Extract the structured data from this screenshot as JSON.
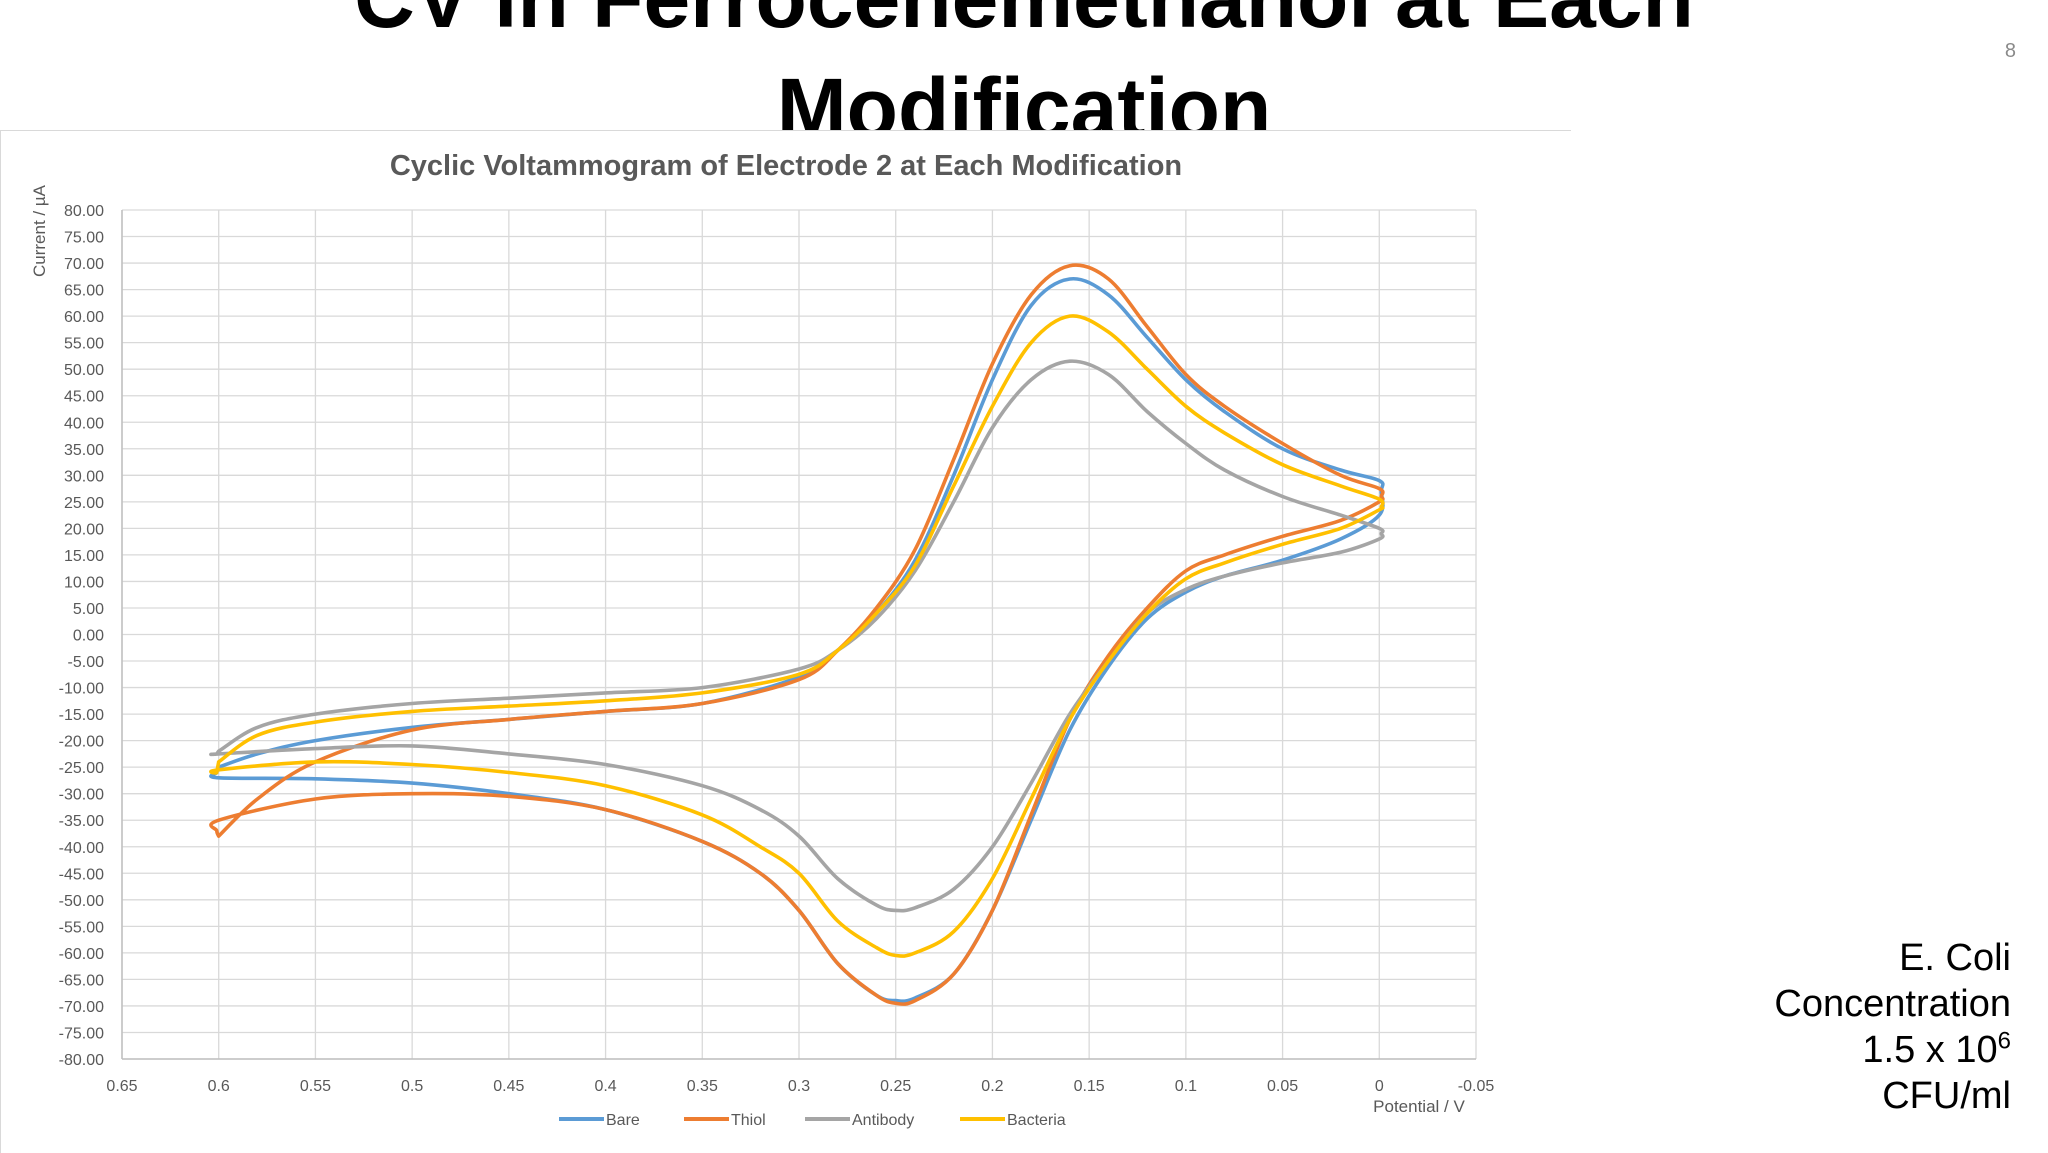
{
  "slide": {
    "title_line_1": "CV in Ferrocenemethanol at Each",
    "title_line_2": "Modification",
    "slide_number": "8",
    "note": {
      "line_1": "E. Coli",
      "line_2": "Concentration",
      "line_3_base": "1.5 x 10",
      "line_3_exponent": "6",
      "line_4": "CFU/ml"
    }
  },
  "chart_data": {
    "type": "scatter",
    "title": "Cyclic Voltammogram of Electrode 2 at Each Modification",
    "xlabel": "Potential / V",
    "ylabel": "Current / µA",
    "xlim": [
      0.65,
      -0.05
    ],
    "x_reversed": true,
    "ylim": [
      -80,
      80
    ],
    "x_ticks": [
      0.65,
      0.6,
      0.55,
      0.5,
      0.45,
      0.4,
      0.35,
      0.3,
      0.25,
      0.2,
      0.15,
      0.1,
      0.05,
      0,
      -0.05
    ],
    "x_tick_labels": [
      "0.65",
      "0.6",
      "0.55",
      "0.5",
      "0.45",
      "0.4",
      "0.35",
      "0.3",
      "0.25",
      "0.2",
      "0.15",
      "0.1",
      "0.05",
      "0",
      "-0.05"
    ],
    "y_ticks": [
      80,
      75,
      70,
      65,
      60,
      55,
      50,
      45,
      40,
      35,
      30,
      25,
      20,
      15,
      10,
      5,
      0,
      -5,
      -10,
      -15,
      -20,
      -25,
      -30,
      -35,
      -40,
      -45,
      -50,
      -55,
      -60,
      -65,
      -70,
      -75,
      -80
    ],
    "y_tick_labels": [
      "80.00",
      "75.00",
      "70.00",
      "65.00",
      "60.00",
      "55.00",
      "50.00",
      "45.00",
      "40.00",
      "35.00",
      "30.00",
      "25.00",
      "20.00",
      "15.00",
      "10.00",
      "5.00",
      "0.00",
      "-5.00",
      "-10.00",
      "-15.00",
      "-20.00",
      "-25.00",
      "-30.00",
      "-35.00",
      "-40.00",
      "-45.00",
      "-50.00",
      "-55.00",
      "-60.00",
      "-65.00",
      "-70.00",
      "-75.00",
      "-80.00"
    ],
    "grid": true,
    "legend_position": "bottom",
    "series": [
      {
        "name": "Bare",
        "color": "#5B9BD5",
        "x": [
          0.6,
          0.58,
          0.55,
          0.5,
          0.45,
          0.4,
          0.35,
          0.3,
          0.28,
          0.26,
          0.24,
          0.22,
          0.2,
          0.18,
          0.16,
          0.14,
          0.12,
          0.1,
          0.08,
          0.05,
          0.02,
          0,
          -0.001,
          0,
          0.02,
          0.05,
          0.08,
          0.1,
          0.12,
          0.14,
          0.16,
          0.18,
          0.2,
          0.22,
          0.24,
          0.25,
          0.26,
          0.28,
          0.3,
          0.32,
          0.35,
          0.4,
          0.45,
          0.5,
          0.55,
          0.6,
          0.601,
          0.6
        ],
        "y": [
          -25,
          -22.5,
          -20,
          -17.5,
          -16,
          -14.5,
          -13,
          -8,
          -3,
          4,
          14,
          30,
          48,
          62,
          67,
          64,
          56,
          48,
          42,
          35,
          31,
          29,
          27,
          22.5,
          18,
          14,
          11,
          8,
          3,
          -6,
          -18,
          -35,
          -52,
          -64,
          -68.5,
          -69,
          -68,
          -62,
          -52,
          -45,
          -39,
          -33,
          -30,
          -28,
          -27.2,
          -27,
          -26,
          -25
        ]
      },
      {
        "name": "Thiol",
        "color": "#ED7D31",
        "x": [
          0.6,
          0.58,
          0.55,
          0.5,
          0.45,
          0.4,
          0.35,
          0.3,
          0.28,
          0.26,
          0.24,
          0.22,
          0.2,
          0.18,
          0.16,
          0.14,
          0.12,
          0.1,
          0.08,
          0.05,
          0.02,
          0,
          -0.001,
          0,
          0.02,
          0.05,
          0.08,
          0.1,
          0.12,
          0.14,
          0.16,
          0.18,
          0.2,
          0.22,
          0.24,
          0.25,
          0.26,
          0.28,
          0.3,
          0.32,
          0.35,
          0.4,
          0.45,
          0.5,
          0.55,
          0.6,
          0.601,
          0.6
        ],
        "y": [
          -38,
          -31,
          -24,
          -18,
          -16,
          -14.5,
          -13,
          -8.5,
          -3,
          5,
          16,
          33,
          51,
          64,
          69.5,
          67,
          58,
          49,
          43,
          36,
          30,
          27.5,
          26,
          25,
          21.5,
          18.5,
          15,
          12,
          5,
          -4,
          -16,
          -34,
          -52,
          -64,
          -69,
          -69.5,
          -68,
          -62,
          -52,
          -45,
          -39,
          -33,
          -30.5,
          -30,
          -31,
          -35,
          -37,
          -38
        ]
      },
      {
        "name": "Antibody",
        "color": "#A5A5A5",
        "x": [
          0.6,
          0.58,
          0.55,
          0.5,
          0.45,
          0.4,
          0.35,
          0.3,
          0.28,
          0.26,
          0.24,
          0.22,
          0.2,
          0.18,
          0.16,
          0.14,
          0.12,
          0.1,
          0.08,
          0.05,
          0.02,
          0,
          -0.001,
          0,
          0.02,
          0.05,
          0.08,
          0.1,
          0.12,
          0.14,
          0.16,
          0.18,
          0.2,
          0.22,
          0.24,
          0.25,
          0.26,
          0.28,
          0.3,
          0.32,
          0.35,
          0.4,
          0.45,
          0.5,
          0.55,
          0.6,
          0.601,
          0.6
        ],
        "y": [
          -22,
          -17.5,
          -15,
          -13,
          -12,
          -11,
          -10,
          -6.5,
          -3,
          3,
          12,
          25,
          39,
          48,
          51.5,
          49,
          42,
          36,
          31,
          26,
          22.5,
          20,
          19,
          18,
          15.5,
          13.5,
          11,
          8.5,
          4,
          -5,
          -15,
          -28,
          -40,
          -48,
          -51.5,
          -52,
          -51,
          -46,
          -38,
          -33,
          -28.5,
          -24.5,
          -22.5,
          -21,
          -21.5,
          -22.5,
          -22.5,
          -22
        ]
      },
      {
        "name": "Bacteria",
        "color": "#FFC000",
        "x": [
          0.6,
          0.58,
          0.55,
          0.5,
          0.45,
          0.4,
          0.35,
          0.3,
          0.28,
          0.26,
          0.24,
          0.22,
          0.2,
          0.18,
          0.16,
          0.14,
          0.12,
          0.1,
          0.08,
          0.05,
          0.02,
          0,
          -0.001,
          0,
          0.02,
          0.05,
          0.08,
          0.1,
          0.12,
          0.14,
          0.16,
          0.18,
          0.2,
          0.22,
          0.24,
          0.25,
          0.26,
          0.28,
          0.3,
          0.32,
          0.35,
          0.4,
          0.45,
          0.5,
          0.55,
          0.6,
          0.601,
          0.6
        ],
        "y": [
          -24,
          -19,
          -16.5,
          -14.5,
          -13.5,
          -12.5,
          -11,
          -7.5,
          -3,
          4,
          13,
          28,
          43,
          55,
          60,
          57,
          50,
          43,
          38,
          32,
          28,
          25.5,
          24,
          23.5,
          20,
          17,
          13.5,
          10.5,
          4,
          -5,
          -16,
          -31,
          -46,
          -56,
          -60,
          -60.5,
          -59,
          -54,
          -45,
          -40,
          -34,
          -28.5,
          -26,
          -24.5,
          -24,
          -25.5,
          -26,
          -24
        ]
      }
    ]
  }
}
